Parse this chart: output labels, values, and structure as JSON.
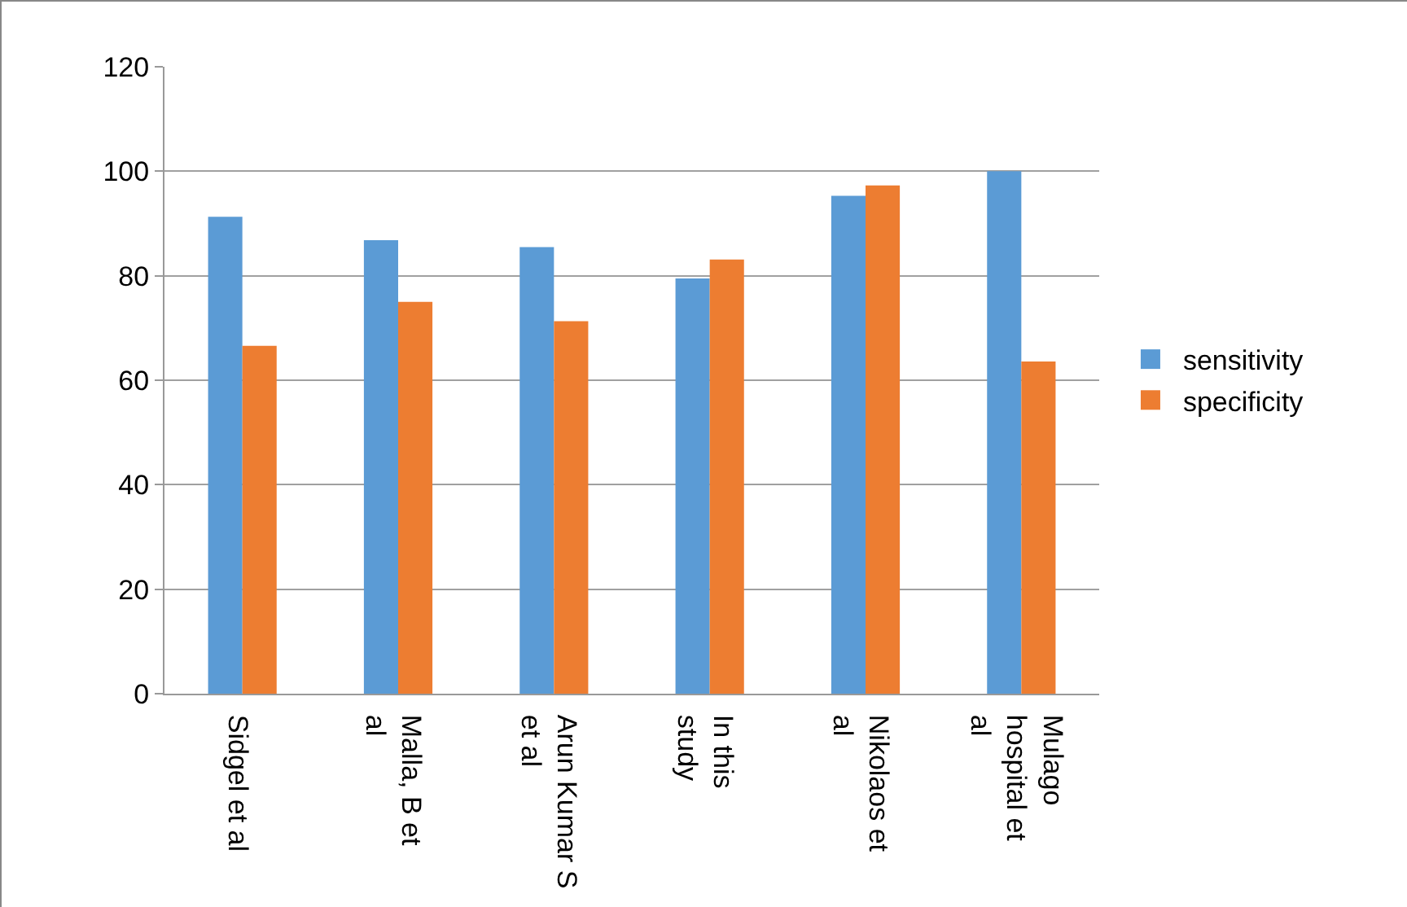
{
  "chart_data": {
    "type": "bar",
    "categories": [
      "Sidgel et al",
      "Malla, B et al",
      "Arun Kumar S et al",
      "In this study",
      "Nikolaos et al",
      "Mulago hospital et al"
    ],
    "series": [
      {
        "name": "sensitivity",
        "color": "#5b9bd5",
        "values": [
          91.3,
          86.8,
          85.5,
          79.5,
          95.3,
          100
        ]
      },
      {
        "name": "specificity",
        "color": "#ed7d31",
        "values": [
          66.6,
          75.0,
          71.3,
          83.1,
          97.3,
          63.6
        ]
      }
    ],
    "ylim": [
      0,
      120
    ],
    "yticks": [
      0,
      20,
      40,
      60,
      80,
      100,
      120
    ],
    "grid": "y",
    "legend": "right"
  }
}
